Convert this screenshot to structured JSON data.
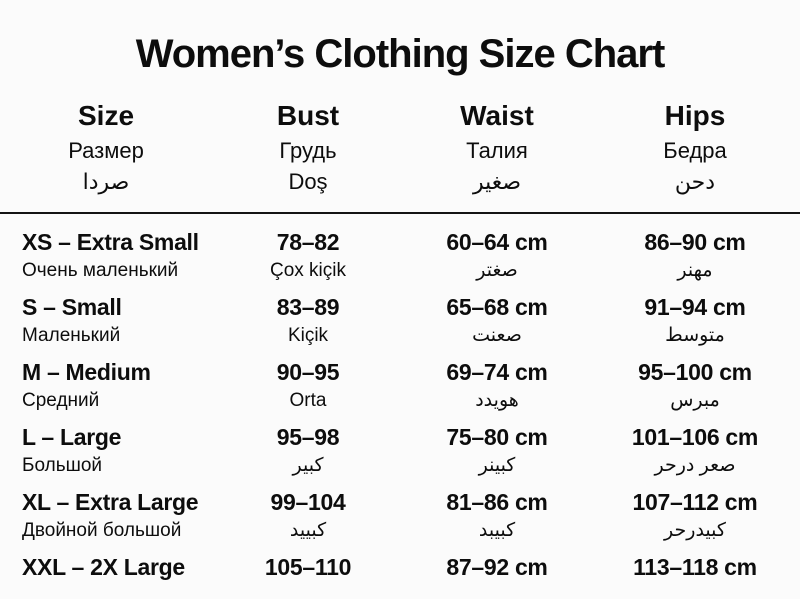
{
  "page": {
    "title": "Women’s Clothing Size Chart"
  },
  "table": {
    "columns": [
      {
        "label": "Size",
        "sub1": "Размер",
        "sub2": "صردا"
      },
      {
        "label": "Bust",
        "sub1": "Грудь",
        "sub2": "Doş"
      },
      {
        "label": "Waist",
        "sub1": "Талия",
        "sub2": "صغير"
      },
      {
        "label": "Hips",
        "sub1": "Бедра",
        "sub2": "دحن"
      }
    ],
    "rows": [
      {
        "size": "XS – Extra Small",
        "size_sub": "Очень маленький",
        "bust": "78–82",
        "bust_sub": "Çox kiçik",
        "waist": "60–64 cm",
        "waist_sub": "صغتر",
        "hips": "86–90 cm",
        "hips_sub": "مهنر"
      },
      {
        "size": "S – Small",
        "size_sub": "Маленький",
        "bust": "83–89",
        "bust_sub": "Kiçik",
        "waist": "65–68 cm",
        "waist_sub": "صعنت",
        "hips": "91–94 cm",
        "hips_sub": "متوسط"
      },
      {
        "size": "M – Medium",
        "size_sub": "Средний",
        "bust": "90–95",
        "bust_sub": "Orta",
        "waist": "69–74 cm",
        "waist_sub": "هويدد",
        "hips": "95–100 cm",
        "hips_sub": "مبرس"
      },
      {
        "size": "L – Large",
        "size_sub": "Большой",
        "bust": "95–98",
        "bust_sub": "كبير",
        "waist": "75–80 cm",
        "waist_sub": "كبينر",
        "hips": "101–106 cm",
        "hips_sub": "صعر درحر"
      },
      {
        "size": "XL – Extra Large",
        "size_sub": "Двойной большой",
        "bust": "99–104",
        "bust_sub": "كبييد",
        "waist": "81–86 cm",
        "waist_sub": "كبيبد",
        "hips": "107–112 cm",
        "hips_sub": "كبيدرحر"
      },
      {
        "size": "XXL – 2X Large",
        "size_sub": "",
        "bust": "105–110",
        "bust_sub": "",
        "waist": "87–92 cm",
        "waist_sub": "",
        "hips": "113–118 cm",
        "hips_sub": ""
      }
    ]
  },
  "chart_data": {
    "type": "table",
    "title": "Women’s Clothing Size Chart",
    "columns": [
      "Size",
      "Bust",
      "Waist",
      "Hips"
    ],
    "rows": [
      [
        "XS – Extra Small",
        "78–82",
        "60–64 cm",
        "86–90 cm"
      ],
      [
        "S – Small",
        "83–89",
        "65–68 cm",
        "91–94 cm"
      ],
      [
        "M – Medium",
        "90–95",
        "69–74 cm",
        "95–100 cm"
      ],
      [
        "L – Large",
        "95–98",
        "75–80 cm",
        "101–106 cm"
      ],
      [
        "XL – Extra Large",
        "99–104",
        "81–86 cm",
        "107–112 cm"
      ],
      [
        "XXL – 2X Large",
        "105–110",
        "87–92 cm",
        "113–118 cm"
      ]
    ]
  },
  "colors": {
    "background": "#fbfbfb",
    "text": "#0d0d0d",
    "divider": "#141414"
  }
}
